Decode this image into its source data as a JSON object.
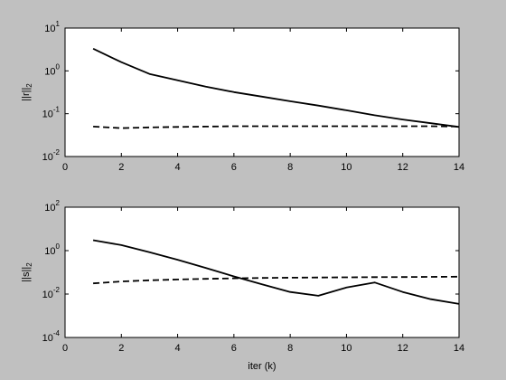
{
  "chart_data": [
    {
      "type": "line",
      "ylabel_main": "||r||",
      "ylabel_sub": "2",
      "xlabel": "",
      "xlim": [
        0,
        14
      ],
      "ylim": [
        0.01,
        10
      ],
      "yscale": "log",
      "grid": false,
      "x_ticks": [
        0,
        2,
        4,
        6,
        8,
        10,
        12,
        14
      ],
      "y_ticks": [
        {
          "value": 10,
          "mantissa": "10",
          "exp": "1"
        },
        {
          "value": 1,
          "mantissa": "10",
          "exp": "0"
        },
        {
          "value": 0.1,
          "mantissa": "10",
          "exp": "-1"
        },
        {
          "value": 0.01,
          "mantissa": "10",
          "exp": "-2"
        }
      ],
      "series": [
        {
          "style": "solid",
          "x": [
            1,
            2,
            3,
            4,
            5,
            6,
            7,
            8,
            9,
            10,
            11,
            12,
            13,
            14
          ],
          "y": [
            3.3,
            1.6,
            0.85,
            0.6,
            0.43,
            0.32,
            0.25,
            0.195,
            0.155,
            0.12,
            0.092,
            0.073,
            0.06,
            0.049
          ]
        },
        {
          "style": "dashed",
          "x": [
            1,
            2,
            3,
            4,
            5,
            6,
            7,
            8,
            9,
            10,
            11,
            12,
            13,
            14
          ],
          "y": [
            0.05,
            0.046,
            0.048,
            0.049,
            0.05,
            0.051,
            0.051,
            0.051,
            0.051,
            0.051,
            0.051,
            0.051,
            0.051,
            0.05
          ]
        }
      ]
    },
    {
      "type": "line",
      "ylabel_main": "||s||",
      "ylabel_sub": "2",
      "xlabel": "iter (k)",
      "xlim": [
        0,
        14
      ],
      "ylim": [
        0.0001,
        100
      ],
      "yscale": "log",
      "grid": false,
      "x_ticks": [
        0,
        2,
        4,
        6,
        8,
        10,
        12,
        14
      ],
      "y_ticks": [
        {
          "value": 100,
          "mantissa": "10",
          "exp": "2"
        },
        {
          "value": 1,
          "mantissa": "10",
          "exp": "0"
        },
        {
          "value": 0.01,
          "mantissa": "10",
          "exp": "-2"
        },
        {
          "value": 0.0001,
          "mantissa": "10",
          "exp": "-4"
        }
      ],
      "series": [
        {
          "style": "solid",
          "x": [
            1,
            2,
            3,
            4,
            5,
            6,
            7,
            8,
            9,
            10,
            11,
            12,
            13,
            14
          ],
          "y": [
            3.0,
            1.8,
            0.85,
            0.38,
            0.16,
            0.065,
            0.028,
            0.0125,
            0.0083,
            0.02,
            0.034,
            0.0125,
            0.0058,
            0.0035
          ]
        },
        {
          "style": "dashed",
          "x": [
            1,
            2,
            3,
            4,
            5,
            6,
            7,
            8,
            9,
            10,
            11,
            12,
            13,
            14
          ],
          "y": [
            0.031,
            0.038,
            0.043,
            0.047,
            0.05,
            0.053,
            0.055,
            0.057,
            0.058,
            0.059,
            0.06,
            0.061,
            0.062,
            0.063
          ]
        }
      ]
    }
  ]
}
